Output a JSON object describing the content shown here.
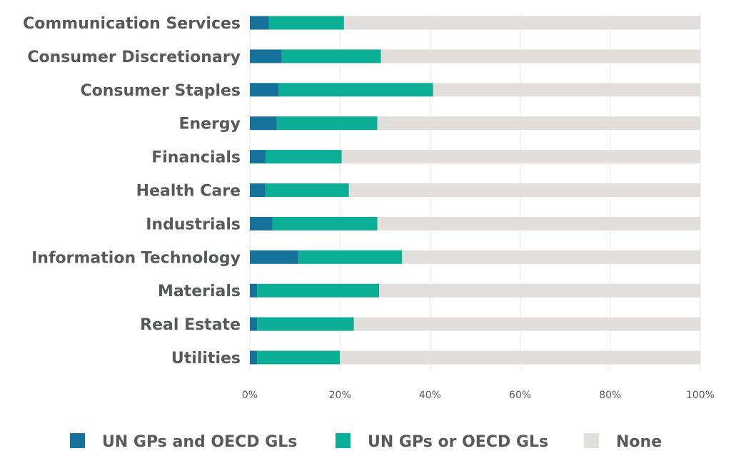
{
  "chart_data": {
    "type": "bar",
    "orientation": "horizontal",
    "stacked": true,
    "title": "",
    "xlabel": "",
    "ylabel": "",
    "xlim": [
      0,
      100
    ],
    "x_ticks": [
      "0%",
      "20%",
      "40%",
      "60%",
      "80%",
      "100%"
    ],
    "grid": true,
    "legend_position": "bottom",
    "categories": [
      "Communication Services",
      "Consumer Discretionary",
      "Consumer Staples",
      "Energy",
      "Financials",
      "Health Care",
      "Industrials",
      "Information Technology",
      "Materials",
      "Real Estate",
      "Utilities"
    ],
    "series": [
      {
        "name": "UN GPs and OECD GLs",
        "color": "#17729b",
        "values": [
          4.2,
          7.1,
          6.4,
          6.0,
          3.5,
          3.4,
          5.0,
          10.8,
          1.6,
          1.6,
          1.6
        ]
      },
      {
        "name": "UN GPs or OECD GLs",
        "color": "#0cae95",
        "values": [
          16.7,
          22.0,
          34.3,
          22.3,
          16.9,
          18.6,
          23.3,
          23.0,
          27.1,
          21.5,
          18.4
        ]
      },
      {
        "name": "None",
        "color": "#e1dedb",
        "values": [
          79.1,
          70.9,
          59.3,
          71.7,
          79.6,
          78.0,
          71.7,
          66.2,
          71.3,
          76.9,
          80.0
        ]
      }
    ]
  }
}
